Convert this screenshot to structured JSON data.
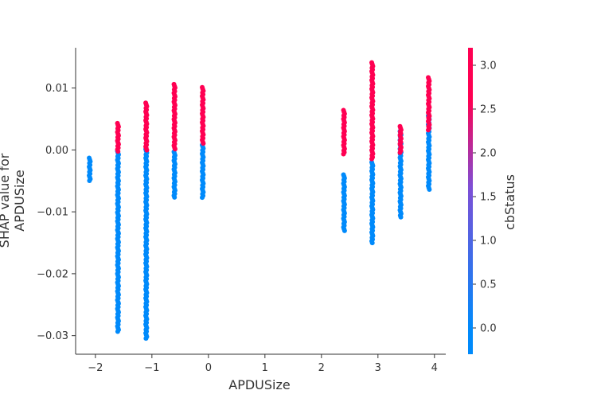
{
  "chart_data": {
    "type": "scatter",
    "title": "",
    "xlabel": "APDUSize",
    "ylabel": "SHAP value for\nAPDUSize",
    "xlim": [
      -2.35,
      4.2
    ],
    "ylim": [
      -0.033,
      0.0165
    ],
    "xticks": [
      -2,
      -1,
      0,
      1,
      2,
      3,
      4
    ],
    "xtick_labels": [
      "−2",
      "−1",
      "0",
      "1",
      "2",
      "3",
      "4"
    ],
    "yticks": [
      -0.03,
      -0.02,
      -0.01,
      0.0,
      0.01
    ],
    "ytick_labels": [
      "−0.03",
      "−0.02",
      "−0.01",
      "0.00",
      "0.01"
    ],
    "grid": false,
    "colorbar": {
      "label": "cbStatus",
      "range": [
        -0.3,
        3.2
      ],
      "ticks": [
        0.0,
        0.5,
        1.0,
        1.5,
        2.0,
        2.5,
        3.0
      ],
      "tick_labels": [
        "0.0",
        "0.5",
        "1.0",
        "1.5",
        "2.0",
        "2.5",
        "3.0"
      ],
      "colormap": [
        "#008afb",
        "#7d4fd6",
        "#ff0052"
      ]
    },
    "columns": [
      {
        "x": -2.1,
        "blue_min": -0.0052,
        "blue_max": -0.0013,
        "red_min": null,
        "red_max": null
      },
      {
        "x": -1.6,
        "blue_min": -0.0295,
        "blue_max": -0.0002,
        "red_min": -0.0005,
        "red_max": 0.0043
      },
      {
        "x": -1.1,
        "blue_min": -0.0305,
        "blue_max": 0.0001,
        "red_min": -0.0002,
        "red_max": 0.0076
      },
      {
        "x": -0.6,
        "blue_min": -0.0078,
        "blue_max": -0.0003,
        "red_min": 0.0001,
        "red_max": 0.0106
      },
      {
        "x": -0.1,
        "blue_min": -0.0078,
        "blue_max": 0.0008,
        "red_min": 0.0009,
        "red_max": 0.0101
      },
      {
        "x": 2.4,
        "blue_min": -0.0132,
        "blue_max": -0.004,
        "red_min": -0.0008,
        "red_max": 0.0064
      },
      {
        "x": 2.9,
        "blue_min": -0.0152,
        "blue_max": -0.002,
        "red_min": -0.0015,
        "red_max": 0.0141
      },
      {
        "x": 3.4,
        "blue_min": -0.011,
        "blue_max": 0.003,
        "red_min": -0.0005,
        "red_max": 0.0038
      },
      {
        "x": 3.9,
        "blue_min": -0.0065,
        "blue_max": 0.0055,
        "red_min": 0.003,
        "red_max": 0.0117
      }
    ]
  }
}
